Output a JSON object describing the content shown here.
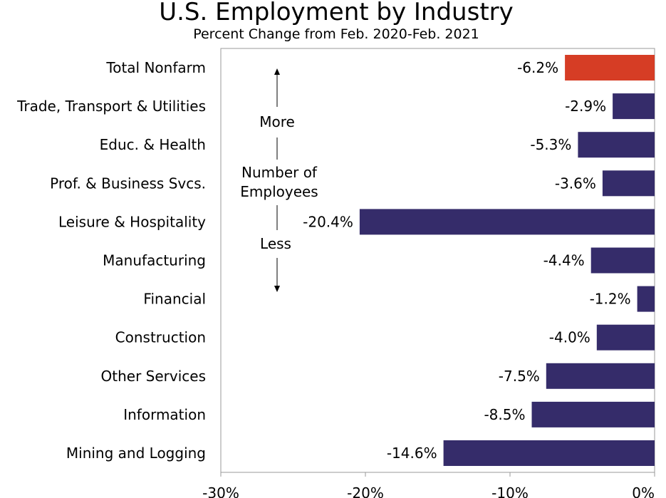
{
  "chart_data": {
    "type": "bar",
    "orientation": "horizontal",
    "title": "U.S. Employment by Industry",
    "subtitle": "Percent Change from Feb. 2020-Feb. 2021",
    "categories": [
      "Total Nonfarm",
      "Trade, Transport & Utilities",
      "Educ. & Health",
      "Prof. & Business Svcs.",
      "Leisure & Hospitality",
      "Manufacturing",
      "Financial",
      "Construction",
      "Other Services",
      "Information",
      "Mining and Logging"
    ],
    "values": [
      -6.2,
      -2.9,
      -5.3,
      -3.6,
      -20.4,
      -4.4,
      -1.2,
      -4.0,
      -7.5,
      -8.5,
      -14.6
    ],
    "data_labels": [
      "-6.2%",
      "-2.9%",
      "-5.3%",
      "-3.6%",
      "-20.4%",
      "-4.4%",
      "-1.2%",
      "-4.0%",
      "-7.5%",
      "-8.5%",
      "-14.6%"
    ],
    "highlight_index": 0,
    "colors": {
      "highlight": "#d63d25",
      "bar": "#352c6a",
      "axis": "#999999"
    },
    "xlim": [
      -30,
      0
    ],
    "x_ticks": [
      -30,
      -20,
      -10,
      0
    ],
    "x_tick_labels": [
      "-30%",
      "-20%",
      "-10%",
      "0%"
    ],
    "xlabel": "",
    "ylabel": "",
    "annotation": {
      "top": "More",
      "middle_line1": "Number of",
      "middle_line2": "Employees",
      "bottom": "Less"
    }
  }
}
